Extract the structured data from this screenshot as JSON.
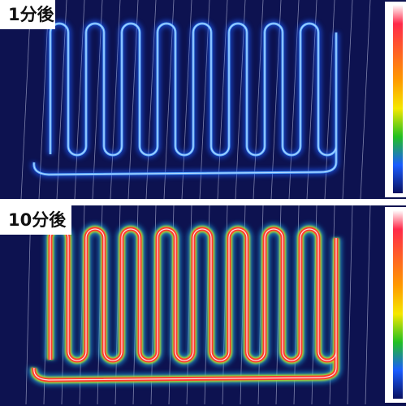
{
  "panels": [
    {
      "label": "1分後"
    },
    {
      "label": "10分後"
    }
  ]
}
